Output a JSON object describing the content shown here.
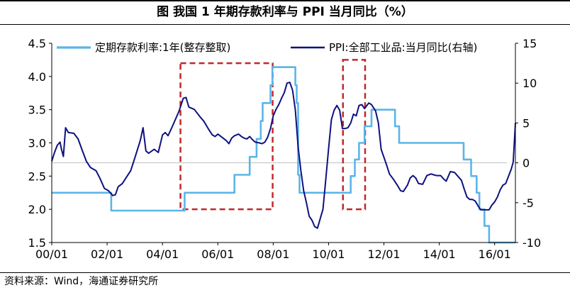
{
  "title": "图 我国 1 年期存款利率与 PPI 当月同比（%）",
  "source": "资料来源：Wind，海通证券研究所",
  "colors": {
    "deposit": "#5BB5E8",
    "ppi": "#0D1180",
    "box": "#C0282A",
    "ref": "#BFBFBF"
  },
  "chart_data": {
    "type": "line",
    "x_ticks": [
      "00/01",
      "02/01",
      "04/01",
      "06/01",
      "08/01",
      "10/01",
      "12/01",
      "14/01",
      "16/01"
    ],
    "x_range": [
      2000.0,
      2016.75
    ],
    "left_axis": {
      "min": 1.5,
      "max": 4.5,
      "ticks": [
        "1.5",
        "2.0",
        "2.5",
        "3.0",
        "3.5",
        "4.0",
        "4.5"
      ]
    },
    "right_axis": {
      "min": -10,
      "max": 15,
      "ticks": [
        "-10",
        "-5",
        "0",
        "5",
        "10",
        "15"
      ]
    },
    "reference_line_right": 0,
    "legend_position": "top",
    "series": [
      {
        "name": "定期存款利率:1年(整存整取)",
        "axis": "left",
        "step": true,
        "points": [
          [
            2000.0,
            2.25
          ],
          [
            2002.15,
            2.25
          ],
          [
            2002.15,
            1.98
          ],
          [
            2004.8,
            1.98
          ],
          [
            2004.8,
            2.25
          ],
          [
            2006.6,
            2.25
          ],
          [
            2006.6,
            2.52
          ],
          [
            2007.15,
            2.52
          ],
          [
            2007.15,
            2.79
          ],
          [
            2007.4,
            2.79
          ],
          [
            2007.4,
            3.06
          ],
          [
            2007.55,
            3.06
          ],
          [
            2007.55,
            3.33
          ],
          [
            2007.62,
            3.33
          ],
          [
            2007.62,
            3.6
          ],
          [
            2007.9,
            3.6
          ],
          [
            2007.9,
            3.87
          ],
          [
            2007.97,
            3.87
          ],
          [
            2007.97,
            4.14
          ],
          [
            2008.8,
            4.14
          ],
          [
            2008.8,
            3.87
          ],
          [
            2008.85,
            3.87
          ],
          [
            2008.85,
            3.6
          ],
          [
            2008.9,
            3.6
          ],
          [
            2008.9,
            2.52
          ],
          [
            2008.95,
            2.52
          ],
          [
            2008.95,
            2.25
          ],
          [
            2010.8,
            2.25
          ],
          [
            2010.8,
            2.5
          ],
          [
            2010.95,
            2.5
          ],
          [
            2010.95,
            2.75
          ],
          [
            2011.1,
            2.75
          ],
          [
            2011.1,
            3.0
          ],
          [
            2011.3,
            3.0
          ],
          [
            2011.3,
            3.25
          ],
          [
            2011.55,
            3.25
          ],
          [
            2011.55,
            3.5
          ],
          [
            2012.4,
            3.5
          ],
          [
            2012.4,
            3.25
          ],
          [
            2012.55,
            3.25
          ],
          [
            2012.55,
            3.0
          ],
          [
            2014.88,
            3.0
          ],
          [
            2014.88,
            2.75
          ],
          [
            2015.15,
            2.75
          ],
          [
            2015.15,
            2.5
          ],
          [
            2015.35,
            2.5
          ],
          [
            2015.35,
            2.25
          ],
          [
            2015.45,
            2.25
          ],
          [
            2015.45,
            2.0
          ],
          [
            2015.63,
            2.0
          ],
          [
            2015.63,
            1.75
          ],
          [
            2015.8,
            1.75
          ],
          [
            2015.8,
            1.5
          ],
          [
            2016.75,
            1.5
          ]
        ]
      },
      {
        "name": "PPI:全部工业品:当月同比(右轴)",
        "axis": "right",
        "step": false,
        "points": [
          [
            2000.0,
            0.2
          ],
          [
            2000.1,
            1.3
          ],
          [
            2000.2,
            2.2
          ],
          [
            2000.3,
            2.6
          ],
          [
            2000.35,
            1.7
          ],
          [
            2000.42,
            0.8
          ],
          [
            2000.5,
            4.4
          ],
          [
            2000.6,
            3.8
          ],
          [
            2000.8,
            3.7
          ],
          [
            2000.95,
            3.0
          ],
          [
            2001.1,
            1.6
          ],
          [
            2001.25,
            0.2
          ],
          [
            2001.4,
            -0.6
          ],
          [
            2001.6,
            -1.0
          ],
          [
            2001.75,
            -2.0
          ],
          [
            2001.9,
            -3.2
          ],
          [
            2002.05,
            -3.5
          ],
          [
            2002.2,
            -4.1
          ],
          [
            2002.3,
            -4.0
          ],
          [
            2002.4,
            -3.0
          ],
          [
            2002.55,
            -2.6
          ],
          [
            2002.7,
            -1.8
          ],
          [
            2002.85,
            -1.0
          ],
          [
            2003.0,
            0.6
          ],
          [
            2003.2,
            2.8
          ],
          [
            2003.3,
            4.4
          ],
          [
            2003.4,
            1.5
          ],
          [
            2003.5,
            1.2
          ],
          [
            2003.7,
            1.7
          ],
          [
            2003.85,
            1.3
          ],
          [
            2004.0,
            3.5
          ],
          [
            2004.1,
            3.8
          ],
          [
            2004.2,
            3.4
          ],
          [
            2004.35,
            4.5
          ],
          [
            2004.5,
            5.7
          ],
          [
            2004.6,
            6.5
          ],
          [
            2004.75,
            8.1
          ],
          [
            2004.85,
            8.2
          ],
          [
            2004.95,
            7.0
          ],
          [
            2005.15,
            6.7
          ],
          [
            2005.35,
            5.8
          ],
          [
            2005.5,
            5.2
          ],
          [
            2005.65,
            4.3
          ],
          [
            2005.8,
            3.5
          ],
          [
            2005.9,
            3.3
          ],
          [
            2006.0,
            3.6
          ],
          [
            2006.15,
            3.2
          ],
          [
            2006.3,
            2.8
          ],
          [
            2006.4,
            2.4
          ],
          [
            2006.5,
            3.1
          ],
          [
            2006.6,
            3.4
          ],
          [
            2006.75,
            3.6
          ],
          [
            2006.85,
            3.3
          ],
          [
            2006.95,
            3.1
          ],
          [
            2007.05,
            3.0
          ],
          [
            2007.15,
            3.3
          ],
          [
            2007.25,
            2.9
          ],
          [
            2007.35,
            2.6
          ],
          [
            2007.5,
            2.5
          ],
          [
            2007.6,
            2.4
          ],
          [
            2007.7,
            2.6
          ],
          [
            2007.8,
            3.2
          ],
          [
            2007.9,
            4.3
          ],
          [
            2008.0,
            5.9
          ],
          [
            2008.1,
            6.7
          ],
          [
            2008.2,
            7.3
          ],
          [
            2008.3,
            8.1
          ],
          [
            2008.4,
            8.8
          ],
          [
            2008.5,
            10.0
          ],
          [
            2008.6,
            10.1
          ],
          [
            2008.7,
            9.1
          ],
          [
            2008.8,
            6.6
          ],
          [
            2008.9,
            2.0
          ],
          [
            2009.0,
            -1.0
          ],
          [
            2009.1,
            -3.5
          ],
          [
            2009.2,
            -5.0
          ],
          [
            2009.3,
            -6.7
          ],
          [
            2009.4,
            -7.2
          ],
          [
            2009.5,
            -8.0
          ],
          [
            2009.6,
            -8.2
          ],
          [
            2009.7,
            -7.0
          ],
          [
            2009.8,
            -5.8
          ],
          [
            2009.9,
            -2.1
          ],
          [
            2010.0,
            1.7
          ],
          [
            2010.1,
            5.4
          ],
          [
            2010.2,
            6.6
          ],
          [
            2010.3,
            7.2
          ],
          [
            2010.4,
            6.6
          ],
          [
            2010.5,
            4.3
          ],
          [
            2010.6,
            4.3
          ],
          [
            2010.7,
            4.4
          ],
          [
            2010.8,
            5.0
          ],
          [
            2010.9,
            6.1
          ],
          [
            2011.0,
            5.9
          ],
          [
            2011.1,
            7.2
          ],
          [
            2011.2,
            7.3
          ],
          [
            2011.3,
            6.8
          ],
          [
            2011.45,
            7.5
          ],
          [
            2011.55,
            7.3
          ],
          [
            2011.7,
            6.5
          ],
          [
            2011.8,
            5.0
          ],
          [
            2011.9,
            1.7
          ],
          [
            2012.0,
            0.7
          ],
          [
            2012.1,
            -0.3
          ],
          [
            2012.2,
            -1.4
          ],
          [
            2012.35,
            -2.1
          ],
          [
            2012.5,
            -2.9
          ],
          [
            2012.6,
            -3.5
          ],
          [
            2012.7,
            -3.6
          ],
          [
            2012.85,
            -2.8
          ],
          [
            2012.95,
            -1.9
          ],
          [
            2013.05,
            -1.6
          ],
          [
            2013.15,
            -1.9
          ],
          [
            2013.25,
            -2.6
          ],
          [
            2013.4,
            -2.7
          ],
          [
            2013.55,
            -1.6
          ],
          [
            2013.7,
            -1.4
          ],
          [
            2013.8,
            -1.5
          ],
          [
            2013.9,
            -1.6
          ],
          [
            2014.05,
            -1.6
          ],
          [
            2014.15,
            -2.0
          ],
          [
            2014.25,
            -2.3
          ],
          [
            2014.4,
            -1.1
          ],
          [
            2014.55,
            -1.2
          ],
          [
            2014.7,
            -1.8
          ],
          [
            2014.8,
            -2.2
          ],
          [
            2014.9,
            -3.3
          ],
          [
            2015.0,
            -4.3
          ],
          [
            2015.1,
            -4.6
          ],
          [
            2015.2,
            -4.6
          ],
          [
            2015.3,
            -4.8
          ],
          [
            2015.4,
            -5.4
          ],
          [
            2015.5,
            -5.9
          ],
          [
            2015.6,
            -5.9
          ],
          [
            2015.7,
            -5.9
          ],
          [
            2015.8,
            -5.9
          ],
          [
            2015.9,
            -5.3
          ],
          [
            2016.0,
            -4.9
          ],
          [
            2016.1,
            -4.3
          ],
          [
            2016.2,
            -3.4
          ],
          [
            2016.3,
            -2.8
          ],
          [
            2016.4,
            -2.6
          ],
          [
            2016.5,
            -1.7
          ],
          [
            2016.6,
            -0.8
          ],
          [
            2016.67,
            0.1
          ],
          [
            2016.75,
            5.0
          ]
        ]
      }
    ],
    "highlight_boxes": [
      {
        "x": [
          2004.65,
          2007.98
        ],
        "y_left": [
          2.0,
          4.2
        ]
      },
      {
        "x": [
          2010.52,
          2011.32
        ],
        "y_left": [
          2.0,
          4.25
        ]
      }
    ]
  }
}
